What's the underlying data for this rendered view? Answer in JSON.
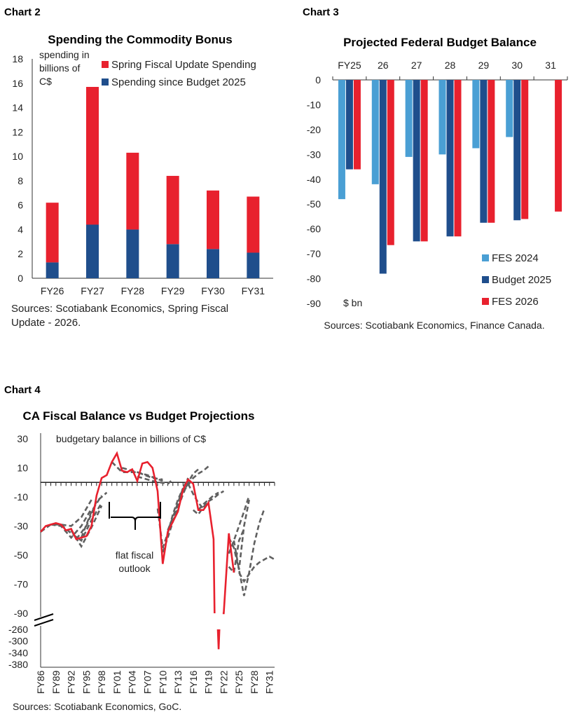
{
  "chart_labels": [
    "Chart 2",
    "Chart 3",
    "Chart 4"
  ],
  "colors": {
    "red": "#e8212e",
    "navy": "#1f4e8c",
    "lightblue": "#4a9fd4",
    "grey": "#606060"
  },
  "chart_data": [
    {
      "type": "bar",
      "stacked": true,
      "title": "Spending the Commodity Bonus",
      "ylabel": "spending in billions of C$",
      "ylabel_lines": [
        "spending in",
        "billions of",
        "C$"
      ],
      "categories": [
        "FY26",
        "FY27",
        "FY28",
        "FY29",
        "FY30",
        "FY31"
      ],
      "series": [
        {
          "name": "Spending since Budget 2025",
          "values": [
            1.3,
            4.4,
            4.0,
            2.8,
            2.4,
            2.1
          ]
        },
        {
          "name": "Spring Fiscal Update Spending",
          "values": [
            4.9,
            11.3,
            6.3,
            5.6,
            4.8,
            4.6
          ]
        }
      ],
      "ylim": [
        0,
        18
      ],
      "yticks": [
        "0",
        "2",
        "4",
        "6",
        "8",
        "10",
        "12",
        "14",
        "16",
        "18"
      ],
      "legend": [
        "Spring Fiscal Update Spending",
        "Spending since Budget 2025"
      ],
      "legend_placement": "top-right",
      "source_lines": [
        "Sources: Scotiabank Economics, Spring Fiscal",
        "Update - 2026."
      ]
    },
    {
      "type": "bar",
      "title": "Projected Federal Budget Balance",
      "ylabel": "$ bn",
      "categories": [
        "FY25",
        "26",
        "27",
        "28",
        "29",
        "30",
        "31"
      ],
      "series": [
        {
          "name": "FES 2024",
          "values": [
            -48,
            -42,
            -31,
            -30,
            -27.5,
            -23,
            null
          ]
        },
        {
          "name": "Budget 2025",
          "values": [
            -36,
            -78,
            -65,
            -63,
            -57.5,
            -56.5,
            null
          ]
        },
        {
          "name": "FES 2026",
          "values": [
            -36,
            -66.5,
            -65,
            -63,
            -57.5,
            -56,
            -53
          ]
        }
      ],
      "ylim": [
        -90,
        0
      ],
      "yticks": [
        "0",
        "-10",
        "-20",
        "-30",
        "-40",
        "-50",
        "-60",
        "-70",
        "-80",
        "-90"
      ],
      "legend": [
        "FES 2024",
        "Budget 2025",
        "FES 2026"
      ],
      "legend_placement": "bottom-right",
      "source": "Sources: Scotiabank Economics, Finance Canada."
    },
    {
      "type": "line",
      "title": "CA Fiscal Balance vs Budget Projections",
      "ylabel": "budgetary balance in billions of C$",
      "yticks_upper": [
        "30",
        "10",
        "-10",
        "-30",
        "-50",
        "-70",
        "-90"
      ],
      "yticks_lower": [
        "-260",
        "-300",
        "-340",
        "-380"
      ],
      "xticks": [
        "FY86",
        "FY89",
        "FY92",
        "FY95",
        "FY98",
        "FY01",
        "FY04",
        "FY07",
        "FY10",
        "FY13",
        "FY16",
        "FY19",
        "FY22",
        "FY25",
        "FY28",
        "FY31"
      ],
      "annotation": "flat fiscal outlook",
      "annotation_lines": [
        "flat fiscal",
        "outlook"
      ],
      "source": "Sources: Scotiabank Economics, GoC.",
      "actual": [
        [
          1986,
          -34
        ],
        [
          1987,
          -30
        ],
        [
          1988,
          -29
        ],
        [
          1989,
          -28
        ],
        [
          1990,
          -29
        ],
        [
          1991,
          -33
        ],
        [
          1992,
          -32
        ],
        [
          1993,
          -39
        ],
        [
          1994,
          -38
        ],
        [
          1995,
          -37
        ],
        [
          1996,
          -30
        ],
        [
          1997,
          -9
        ],
        [
          1998,
          3
        ],
        [
          1999,
          5
        ],
        [
          2000,
          14
        ],
        [
          2001,
          20
        ],
        [
          2002,
          8
        ],
        [
          2003,
          7
        ],
        [
          2004,
          9
        ],
        [
          2005,
          1
        ],
        [
          2006,
          13
        ],
        [
          2007,
          14
        ],
        [
          2008,
          10
        ],
        [
          2009,
          -6
        ],
        [
          2010,
          -56
        ],
        [
          2011,
          -34
        ],
        [
          2012,
          -27
        ],
        [
          2013,
          -20
        ],
        [
          2014,
          -5
        ],
        [
          2015,
          2
        ],
        [
          2016,
          -1
        ],
        [
          2017,
          -19
        ],
        [
          2018,
          -19
        ],
        [
          2019,
          -14
        ],
        [
          2020,
          -39
        ],
        [
          2021,
          -328
        ],
        [
          2022,
          -90
        ],
        [
          2023,
          -35
        ],
        [
          2024,
          -62
        ]
      ],
      "projections": [
        [
          [
            1986,
            -34
          ],
          [
            1988,
            -29
          ],
          [
            1990,
            -29
          ],
          [
            1992,
            -30
          ],
          [
            1994,
            -24
          ],
          [
            1996,
            -12
          ]
        ],
        [
          [
            1988,
            -29
          ],
          [
            1990,
            -30
          ],
          [
            1992,
            -38
          ],
          [
            1994,
            -30
          ],
          [
            1996,
            -18
          ]
        ],
        [
          [
            1990,
            -29
          ],
          [
            1992,
            -35
          ],
          [
            1994,
            -40
          ],
          [
            1996,
            -26
          ],
          [
            1998,
            -14
          ]
        ],
        [
          [
            1992,
            -33
          ],
          [
            1994,
            -44
          ],
          [
            1996,
            -31
          ],
          [
            1998,
            -16
          ]
        ],
        [
          [
            1993,
            -39
          ],
          [
            1995,
            -30
          ],
          [
            1997,
            -13
          ],
          [
            1999,
            -7
          ]
        ],
        [
          [
            1994,
            -38
          ],
          [
            1996,
            -20
          ],
          [
            1998,
            -9
          ]
        ],
        [
          [
            2000,
            14
          ],
          [
            2002,
            7
          ],
          [
            2005,
            7
          ],
          [
            2008,
            3
          ],
          [
            2010,
            2
          ]
        ],
        [
          [
            2002,
            10
          ],
          [
            2004,
            8
          ],
          [
            2007,
            5
          ],
          [
            2010,
            1
          ]
        ],
        [
          [
            2005,
            4
          ],
          [
            2008,
            1
          ],
          [
            2011,
            -1
          ],
          [
            2012,
            2
          ]
        ],
        [
          [
            2009,
            -18
          ],
          [
            2010,
            -45
          ],
          [
            2011,
            -35
          ],
          [
            2012,
            -22
          ],
          [
            2013,
            -12
          ],
          [
            2014,
            -4
          ]
        ],
        [
          [
            2010,
            -48
          ],
          [
            2011,
            -38
          ],
          [
            2012,
            -27
          ],
          [
            2013,
            -15
          ],
          [
            2014,
            -6
          ],
          [
            2015,
            -1
          ]
        ],
        [
          [
            2011,
            -33
          ],
          [
            2012,
            -24
          ],
          [
            2013,
            -14
          ],
          [
            2014,
            -4
          ],
          [
            2015,
            3
          ]
        ],
        [
          [
            2012,
            -27
          ],
          [
            2013,
            -18
          ],
          [
            2014,
            -8
          ],
          [
            2015,
            0
          ],
          [
            2016,
            6
          ],
          [
            2017,
            9
          ]
        ],
        [
          [
            2014,
            -6
          ],
          [
            2015,
            -2
          ],
          [
            2016,
            3
          ],
          [
            2017,
            6
          ],
          [
            2018,
            8
          ],
          [
            2019,
            11
          ]
        ],
        [
          [
            2015,
            -1
          ],
          [
            2016,
            -8
          ],
          [
            2017,
            -14
          ],
          [
            2018,
            -18
          ],
          [
            2019,
            -13
          ]
        ],
        [
          [
            2016,
            -19
          ],
          [
            2017,
            -22
          ],
          [
            2018,
            -17
          ],
          [
            2019,
            -13
          ],
          [
            2020,
            -11
          ],
          [
            2021,
            -8
          ],
          [
            2022,
            -6
          ]
        ],
        [
          [
            2017,
            -19
          ],
          [
            2018,
            -15
          ],
          [
            2019,
            -12
          ],
          [
            2020,
            -9
          ],
          [
            2021,
            -7
          ]
        ],
        [
          [
            2023,
            -38
          ],
          [
            2024,
            -45
          ],
          [
            2025,
            -60
          ],
          [
            2026,
            -30
          ],
          [
            2027,
            -12
          ]
        ],
        [
          [
            2023,
            -49
          ],
          [
            2024,
            -40
          ],
          [
            2025,
            -30
          ],
          [
            2026,
            -20
          ],
          [
            2027,
            -9
          ]
        ],
        [
          [
            2024,
            -40
          ],
          [
            2025,
            -60
          ],
          [
            2026,
            -78
          ],
          [
            2027,
            -62
          ],
          [
            2028,
            -42
          ],
          [
            2029,
            -28
          ],
          [
            2030,
            -18
          ]
        ],
        [
          [
            2023,
            -58
          ],
          [
            2024,
            -62
          ],
          [
            2025,
            -40
          ],
          [
            2026,
            -32
          ]
        ],
        [
          [
            2025,
            -62
          ],
          [
            2026,
            -68
          ],
          [
            2027,
            -63
          ],
          [
            2028,
            -58
          ],
          [
            2029,
            -55
          ],
          [
            2030,
            -53
          ],
          [
            2031,
            -51
          ],
          [
            2032,
            -53
          ]
        ]
      ]
    }
  ]
}
